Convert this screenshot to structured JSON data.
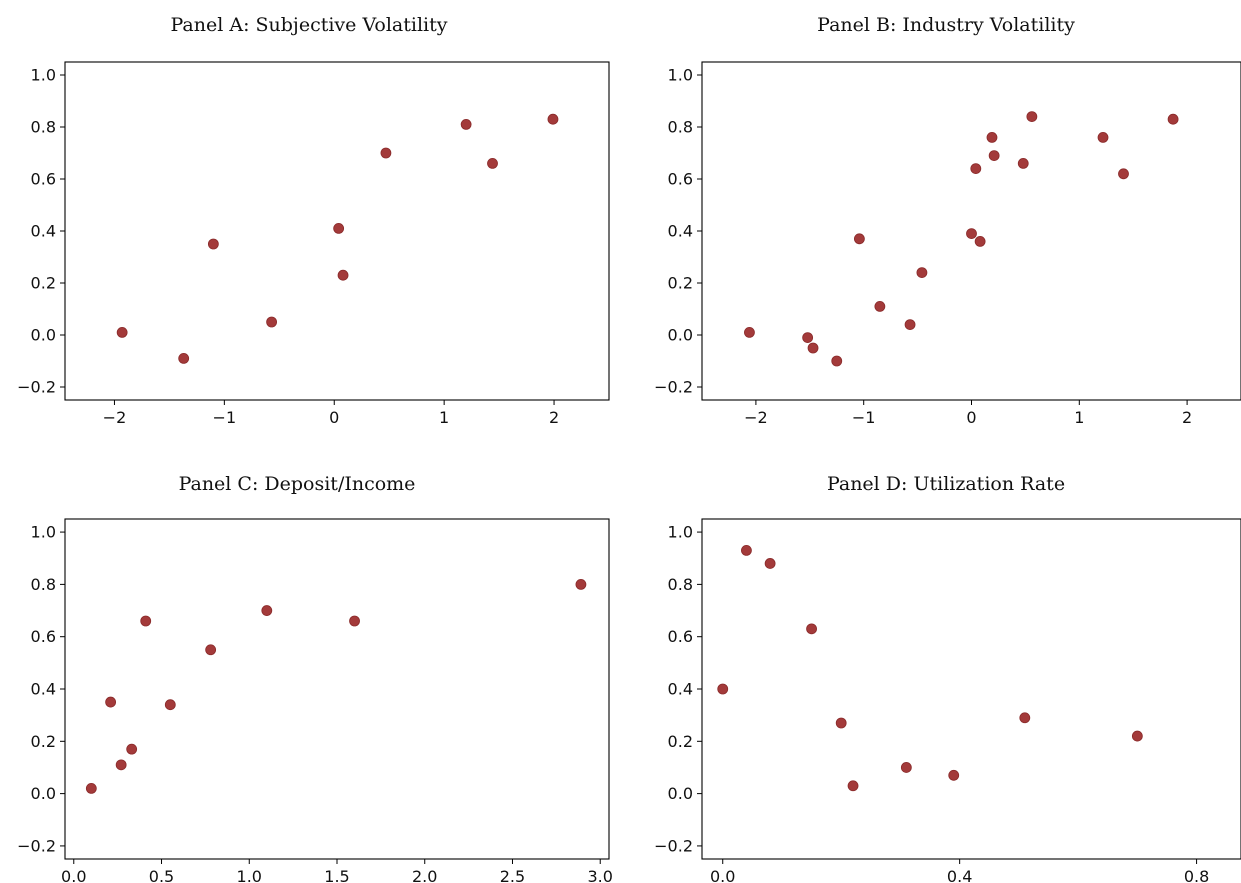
{
  "chart_data": [
    {
      "type": "scatter",
      "title": "Panel A: Subjective Volatility",
      "xlabel": "",
      "ylabel": "",
      "xlim": [
        -2.45,
        2.5
      ],
      "ylim": [
        -0.25,
        1.05
      ],
      "xticks": [
        -2,
        -1,
        0,
        1,
        2
      ],
      "xtick_labels": [
        "−2",
        "−1",
        "0",
        "1",
        "2"
      ],
      "yticks": [
        -0.2,
        0.0,
        0.2,
        0.4,
        0.6,
        0.8,
        1.0
      ],
      "ytick_labels": [
        "−0.2",
        "0.0",
        "0.2",
        "0.4",
        "0.6",
        "0.8",
        "1.0"
      ],
      "grid": false,
      "color": "#a33a3a",
      "points": [
        {
          "x": -1.93,
          "y": 0.01
        },
        {
          "x": -1.37,
          "y": -0.09
        },
        {
          "x": -1.1,
          "y": 0.35
        },
        {
          "x": -0.57,
          "y": 0.05
        },
        {
          "x": 0.04,
          "y": 0.41
        },
        {
          "x": 0.08,
          "y": 0.23
        },
        {
          "x": 0.47,
          "y": 0.7
        },
        {
          "x": 1.2,
          "y": 0.81
        },
        {
          "x": 1.44,
          "y": 0.66
        },
        {
          "x": 1.99,
          "y": 0.83
        }
      ]
    },
    {
      "type": "scatter",
      "title": "Panel B: Industry Volatility",
      "xlabel": "",
      "ylabel": "",
      "xlim": [
        -2.5,
        2.5
      ],
      "ylim": [
        -0.25,
        1.05
      ],
      "xticks": [
        -2,
        -1,
        0,
        1,
        2
      ],
      "xtick_labels": [
        "−2",
        "−1",
        "0",
        "1",
        "2"
      ],
      "yticks": [
        -0.2,
        0.0,
        0.2,
        0.4,
        0.6,
        0.8,
        1.0
      ],
      "ytick_labels": [
        "−0.2",
        "0.0",
        "0.2",
        "0.4",
        "0.6",
        "0.8",
        "1.0"
      ],
      "grid": false,
      "color": "#a33a3a",
      "points": [
        {
          "x": -2.06,
          "y": 0.01
        },
        {
          "x": -1.52,
          "y": -0.01
        },
        {
          "x": -1.47,
          "y": -0.05
        },
        {
          "x": -1.25,
          "y": -0.1
        },
        {
          "x": -1.04,
          "y": 0.37
        },
        {
          "x": -0.85,
          "y": 0.11
        },
        {
          "x": -0.57,
          "y": 0.04
        },
        {
          "x": -0.46,
          "y": 0.24
        },
        {
          "x": 0.0,
          "y": 0.39
        },
        {
          "x": 0.04,
          "y": 0.64
        },
        {
          "x": 0.08,
          "y": 0.36
        },
        {
          "x": 0.19,
          "y": 0.76
        },
        {
          "x": 0.21,
          "y": 0.69
        },
        {
          "x": 0.48,
          "y": 0.66
        },
        {
          "x": 0.56,
          "y": 0.84
        },
        {
          "x": 1.22,
          "y": 0.76
        },
        {
          "x": 1.41,
          "y": 0.62
        },
        {
          "x": 1.87,
          "y": 0.83
        }
      ]
    },
    {
      "type": "scatter",
      "title": "Panel C: Deposit/Income",
      "xlabel": "",
      "ylabel": "",
      "xlim": [
        -0.05,
        3.05
      ],
      "ylim": [
        -0.25,
        1.05
      ],
      "xticks": [
        0.0,
        0.5,
        1.0,
        1.5,
        2.0,
        2.5,
        3.0
      ],
      "xtick_labels": [
        "0.0",
        "0.5",
        "1.0",
        "1.5",
        "2.0",
        "2.5",
        "3.0"
      ],
      "yticks": [
        -0.2,
        0.0,
        0.2,
        0.4,
        0.6,
        0.8,
        1.0
      ],
      "ytick_labels": [
        "−0.2",
        "0.0",
        "0.2",
        "0.4",
        "0.6",
        "0.8",
        "1.0"
      ],
      "grid": false,
      "color": "#a33a3a",
      "points": [
        {
          "x": 0.1,
          "y": 0.02
        },
        {
          "x": 0.21,
          "y": 0.35
        },
        {
          "x": 0.27,
          "y": 0.11
        },
        {
          "x": 0.33,
          "y": 0.17
        },
        {
          "x": 0.41,
          "y": 0.66
        },
        {
          "x": 0.55,
          "y": 0.34
        },
        {
          "x": 0.78,
          "y": 0.55
        },
        {
          "x": 1.1,
          "y": 0.7
        },
        {
          "x": 1.6,
          "y": 0.66
        },
        {
          "x": 2.89,
          "y": 0.8
        }
      ]
    },
    {
      "type": "scatter",
      "title": "Panel D: Utilization Rate",
      "xlabel": "",
      "ylabel": "",
      "xlim": [
        -0.035,
        0.875
      ],
      "ylim": [
        -0.25,
        1.05
      ],
      "xticks": [
        0.0,
        0.4,
        0.8
      ],
      "xtick_labels": [
        "0.0",
        "0.4",
        "0.8"
      ],
      "yticks": [
        -0.2,
        0.0,
        0.2,
        0.4,
        0.6,
        0.8,
        1.0
      ],
      "ytick_labels": [
        "−0.2",
        "0.0",
        "0.2",
        "0.4",
        "0.6",
        "0.8",
        "1.0"
      ],
      "grid": false,
      "color": "#a33a3a",
      "points": [
        {
          "x": 0.0,
          "y": 0.4
        },
        {
          "x": 0.04,
          "y": 0.93
        },
        {
          "x": 0.08,
          "y": 0.88
        },
        {
          "x": 0.15,
          "y": 0.63
        },
        {
          "x": 0.2,
          "y": 0.27
        },
        {
          "x": 0.22,
          "y": 0.03
        },
        {
          "x": 0.31,
          "y": 0.1
        },
        {
          "x": 0.39,
          "y": 0.07
        },
        {
          "x": 0.51,
          "y": 0.29
        },
        {
          "x": 0.7,
          "y": 0.22
        }
      ]
    }
  ]
}
